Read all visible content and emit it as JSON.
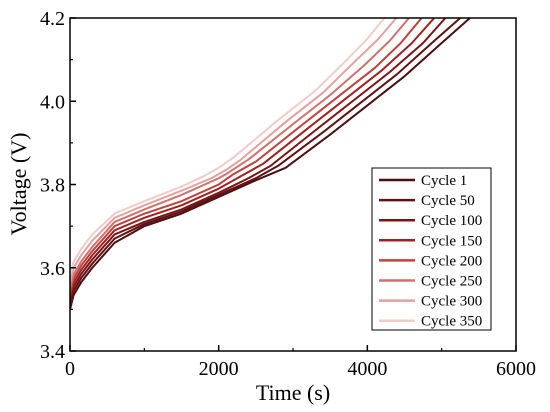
{
  "chart_data": {
    "type": "line",
    "title": "",
    "xlabel": "Time (s)",
    "ylabel": "Voltage (V)",
    "xlim": [
      0,
      6000
    ],
    "ylim": [
      3.4,
      4.2
    ],
    "xticks": [
      0,
      2000,
      4000,
      6000
    ],
    "yticks": [
      3.4,
      3.6,
      3.8,
      4.0,
      4.2
    ],
    "xtick_labels": [
      "0",
      "2000",
      "4000",
      "6000"
    ],
    "ytick_labels": [
      "3.4",
      "3.6",
      "3.8",
      "4.0",
      "4.2"
    ],
    "grid": false,
    "legend_position": "bottom-right",
    "series": [
      {
        "name": "Cycle 1",
        "color": "#4a0f10",
        "x": [
          0,
          50,
          150,
          300,
          600,
          1000,
          1500,
          2000,
          2500,
          2900,
          3500,
          4000,
          4500,
          5000,
          5380
        ],
        "y": [
          3.5,
          3.535,
          3.565,
          3.6,
          3.66,
          3.7,
          3.73,
          3.77,
          3.81,
          3.84,
          3.92,
          3.99,
          4.06,
          4.14,
          4.2
        ]
      },
      {
        "name": "Cycle 50",
        "color": "#5e1012",
        "x": [
          0,
          50,
          150,
          300,
          600,
          1000,
          1500,
          2000,
          2500,
          2800,
          3400,
          3900,
          4400,
          4900,
          5250
        ],
        "y": [
          3.51,
          3.545,
          3.575,
          3.61,
          3.67,
          3.705,
          3.735,
          3.775,
          3.815,
          3.845,
          3.925,
          3.995,
          4.065,
          4.145,
          4.2
        ]
      },
      {
        "name": "Cycle 100",
        "color": "#7a1414",
        "x": [
          0,
          50,
          150,
          300,
          600,
          1000,
          1500,
          2000,
          2400,
          2700,
          3300,
          3800,
          4300,
          4750,
          5050
        ],
        "y": [
          3.52,
          3.555,
          3.585,
          3.62,
          3.68,
          3.71,
          3.74,
          3.78,
          3.815,
          3.845,
          3.93,
          4.0,
          4.07,
          4.14,
          4.2
        ]
      },
      {
        "name": "Cycle 150",
        "color": "#a02020",
        "x": [
          0,
          50,
          150,
          300,
          600,
          1000,
          1500,
          2000,
          2300,
          2600,
          3200,
          3700,
          4200,
          4600,
          4900
        ],
        "y": [
          3.53,
          3.565,
          3.595,
          3.63,
          3.69,
          3.72,
          3.75,
          3.79,
          3.82,
          3.85,
          3.935,
          4.005,
          4.075,
          4.14,
          4.2
        ]
      },
      {
        "name": "Cycle 200",
        "color": "#c0403c",
        "x": [
          0,
          50,
          150,
          300,
          600,
          1000,
          1500,
          2000,
          2200,
          2500,
          3100,
          3600,
          4100,
          4450,
          4730
        ],
        "y": [
          3.54,
          3.575,
          3.605,
          3.64,
          3.7,
          3.73,
          3.76,
          3.8,
          3.825,
          3.855,
          3.94,
          4.01,
          4.08,
          4.14,
          4.2
        ]
      },
      {
        "name": "Cycle 250",
        "color": "#d2706e",
        "x": [
          0,
          50,
          150,
          300,
          600,
          1000,
          1500,
          2000,
          2100,
          2400,
          3000,
          3500,
          3950,
          4300,
          4560
        ],
        "y": [
          3.55,
          3.585,
          3.615,
          3.65,
          3.71,
          3.74,
          3.775,
          3.815,
          3.825,
          3.86,
          3.945,
          4.015,
          4.085,
          4.145,
          4.2
        ]
      },
      {
        "name": "Cycle 300",
        "color": "#e4a09c",
        "x": [
          0,
          50,
          150,
          300,
          600,
          1000,
          1500,
          1900,
          2100,
          2300,
          2900,
          3400,
          3800,
          4150,
          4390
        ],
        "y": [
          3.565,
          3.6,
          3.63,
          3.665,
          3.72,
          3.75,
          3.785,
          3.815,
          3.835,
          3.86,
          3.95,
          4.02,
          4.09,
          4.15,
          4.2
        ]
      },
      {
        "name": "Cycle 350",
        "color": "#f2cbc8",
        "x": [
          0,
          50,
          150,
          300,
          600,
          1000,
          1500,
          1800,
          2000,
          2200,
          2800,
          3300,
          3700,
          4000,
          4230
        ],
        "y": [
          3.58,
          3.615,
          3.645,
          3.68,
          3.73,
          3.76,
          3.795,
          3.82,
          3.84,
          3.865,
          3.955,
          4.025,
          4.095,
          4.15,
          4.2
        ]
      }
    ]
  }
}
